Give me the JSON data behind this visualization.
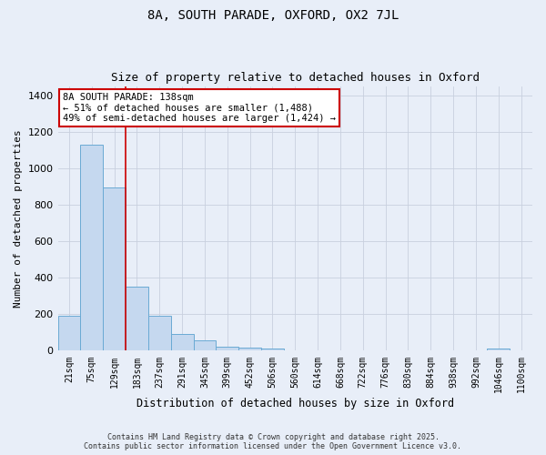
{
  "title": "8A, SOUTH PARADE, OXFORD, OX2 7JL",
  "subtitle": "Size of property relative to detached houses in Oxford",
  "xlabel": "Distribution of detached houses by size in Oxford",
  "ylabel": "Number of detached properties",
  "categories": [
    "21sqm",
    "75sqm",
    "129sqm",
    "183sqm",
    "237sqm",
    "291sqm",
    "345sqm",
    "399sqm",
    "452sqm",
    "506sqm",
    "560sqm",
    "614sqm",
    "668sqm",
    "722sqm",
    "776sqm",
    "830sqm",
    "884sqm",
    "938sqm",
    "992sqm",
    "1046sqm",
    "1100sqm"
  ],
  "values": [
    190,
    1130,
    895,
    350,
    193,
    90,
    55,
    22,
    15,
    10,
    0,
    0,
    0,
    0,
    0,
    0,
    0,
    0,
    0,
    12,
    0
  ],
  "bar_color": "#c5d8ef",
  "bar_edge_color": "#6aaad4",
  "background_color": "#e8eef8",
  "grid_color": "#c8d0de",
  "vline_color": "#cc0000",
  "vline_x": 2.5,
  "annotation_title": "8A SOUTH PARADE: 138sqm",
  "annotation_line1": "← 51% of detached houses are smaller (1,488)",
  "annotation_line2": "49% of semi-detached houses are larger (1,424) →",
  "annotation_box_color": "#ffffff",
  "annotation_border_color": "#cc0000",
  "footer_line1": "Contains HM Land Registry data © Crown copyright and database right 2025.",
  "footer_line2": "Contains public sector information licensed under the Open Government Licence v3.0.",
  "ylim": [
    0,
    1450
  ],
  "title_fontsize": 10,
  "subtitle_fontsize": 9,
  "annotation_fontsize": 7.5,
  "ylabel_fontsize": 8,
  "xlabel_fontsize": 8.5,
  "tick_fontsize": 7
}
